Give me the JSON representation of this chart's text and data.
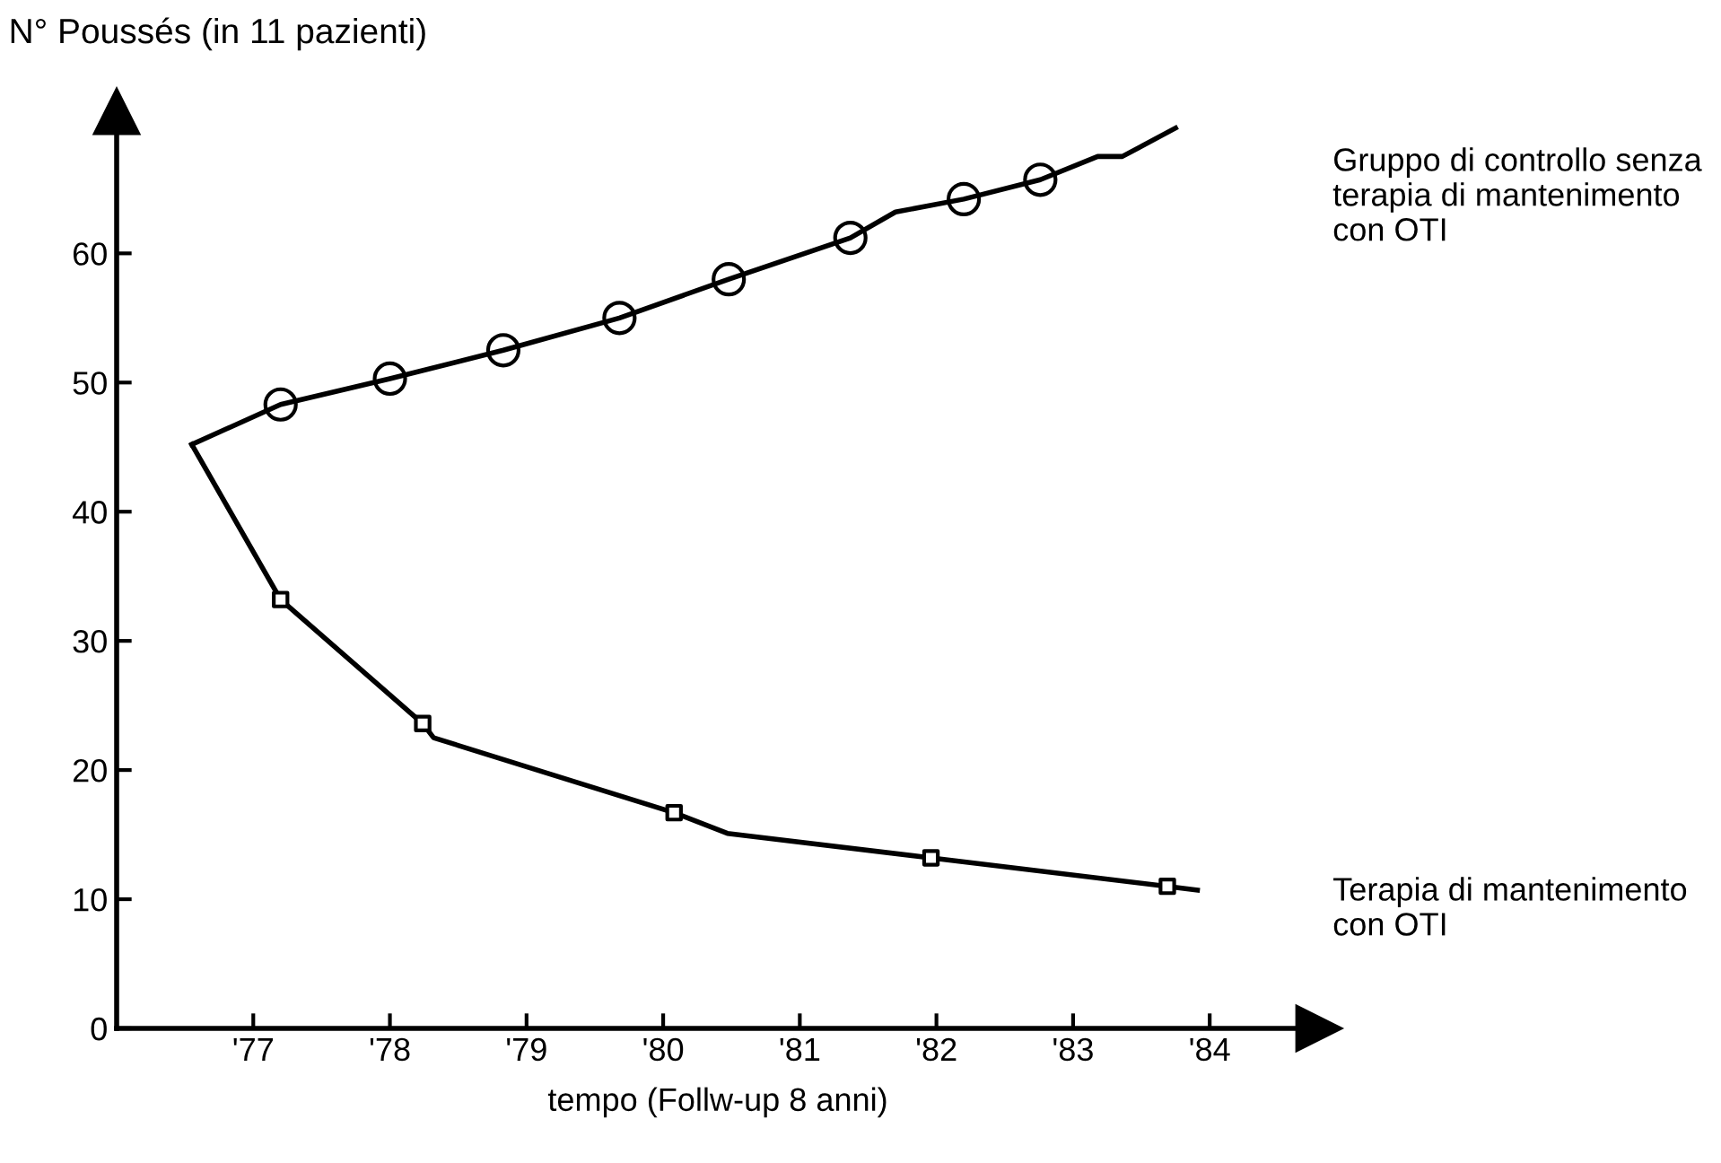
{
  "chart_data": {
    "type": "line",
    "ylabel": "N° Poussés (in 11 pazienti)",
    "xlabel": "tempo (Follw-up 8 anni)",
    "xlim": [
      76,
      84.8
    ],
    "ylim": [
      0,
      71
    ],
    "xticks": [
      {
        "value": 77,
        "label": "'77"
      },
      {
        "value": 78,
        "label": "'78"
      },
      {
        "value": 79,
        "label": "'79"
      },
      {
        "value": 80,
        "label": "'80"
      },
      {
        "value": 81,
        "label": "'81"
      },
      {
        "value": 82,
        "label": "'82"
      },
      {
        "value": 83,
        "label": "'83"
      },
      {
        "value": 84,
        "label": "'84"
      }
    ],
    "yticks": [
      0,
      10,
      20,
      30,
      40,
      50,
      60
    ],
    "grid": false,
    "legend": false,
    "series": [
      {
        "name": "Gruppo di controllo senza terapia di mantenimento con OTI",
        "color": "#000000",
        "marker": "none",
        "x": [
          76.55,
          77.2,
          78.0,
          78.83,
          79.68,
          80.48,
          81.37,
          81.7,
          82.2,
          82.76,
          83.18,
          83.36,
          83.75
        ],
        "values": [
          45.2,
          48.3,
          50.3,
          52.5,
          55.0,
          58.0,
          61.2,
          63.2,
          64.2,
          65.7,
          67.5,
          67.5,
          69.7
        ]
      },
      {
        "type": "scatter",
        "color": "#000000",
        "marker": "circle",
        "x": [
          77.2,
          78.0,
          78.83,
          79.68,
          80.48,
          81.37,
          82.2,
          82.76
        ],
        "values": [
          48.3,
          50.3,
          52.5,
          55.0,
          58.0,
          61.2,
          64.2,
          65.7
        ]
      },
      {
        "type": "scatter",
        "color": "#000000",
        "marker": "square",
        "x": [
          77.2,
          78.24,
          80.08,
          81.96,
          83.69
        ],
        "values": [
          33.2,
          23.6,
          16.7,
          13.2,
          11.0
        ]
      },
      {
        "name": "Terapia di mantenimento con OTI",
        "color": "#000000",
        "marker": "none",
        "x": [
          76.55,
          77.2,
          78.24,
          78.32,
          80.08,
          80.47,
          81.96,
          83.69,
          83.91
        ],
        "values": [
          45.2,
          33.2,
          23.6,
          22.5,
          16.7,
          15.1,
          13.2,
          11.0,
          10.7
        ]
      }
    ]
  }
}
